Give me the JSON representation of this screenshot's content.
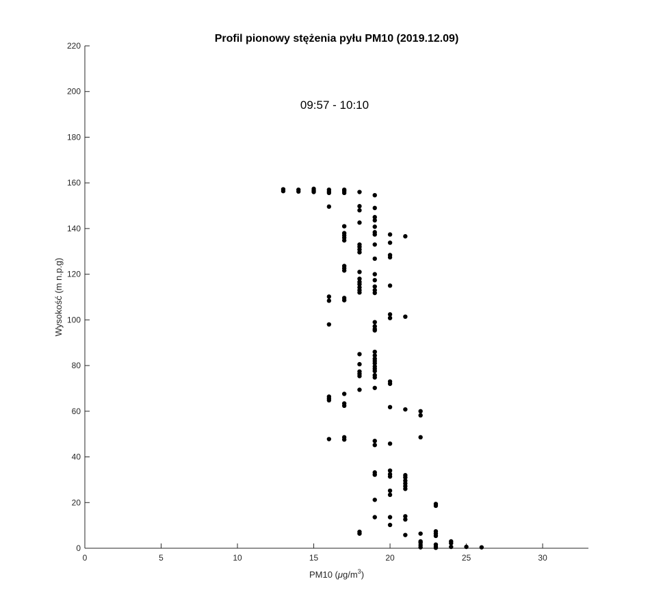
{
  "chart_data": {
    "type": "scatter",
    "title": "Profil pionowy stężenia pyłu PM10 (2019.12.09)",
    "xlabel_prefix": "PM10 (",
    "xlabel_mu": "μ",
    "xlabel_unit": "g/m",
    "xlabel_exp": "3",
    "xlabel_suffix": ")",
    "ylabel": "Wysokość (m n.p.g)",
    "annotation": "09:57 - 10:10",
    "xlim": [
      0,
      33
    ],
    "ylim": [
      0,
      220
    ],
    "x_ticks": [
      0,
      5,
      10,
      15,
      20,
      25,
      30
    ],
    "y_ticks": [
      0,
      20,
      40,
      60,
      80,
      100,
      120,
      140,
      160,
      180,
      200,
      220
    ],
    "x_tick_labels": [
      "0",
      "5",
      "10",
      "15",
      "20",
      "25",
      "30"
    ],
    "y_tick_labels": [
      "0",
      "20",
      "40",
      "60",
      "80",
      "100",
      "120",
      "140",
      "160",
      "180",
      "200",
      "220"
    ],
    "grid": false,
    "marker_color": "#000000",
    "points": [
      [
        13,
        157.2
      ],
      [
        13,
        156.4
      ],
      [
        14,
        157
      ],
      [
        14,
        156.2
      ],
      [
        15,
        157.4
      ],
      [
        15,
        156.6
      ],
      [
        15,
        156
      ],
      [
        16,
        157
      ],
      [
        16,
        156.2
      ],
      [
        16,
        155.6
      ],
      [
        16,
        149.6
      ],
      [
        17,
        157
      ],
      [
        17,
        156.4
      ],
      [
        17,
        155.6
      ],
      [
        18,
        156
      ],
      [
        18,
        149.8
      ],
      [
        18,
        148
      ],
      [
        18,
        142.6
      ],
      [
        18,
        133
      ],
      [
        18,
        132
      ],
      [
        18,
        130.8
      ],
      [
        18,
        129.6
      ],
      [
        18,
        121
      ],
      [
        18,
        118
      ],
      [
        18,
        116.6
      ],
      [
        18,
        115.6
      ],
      [
        18,
        114.2
      ],
      [
        18,
        113
      ],
      [
        18,
        112
      ],
      [
        18,
        85
      ],
      [
        18,
        80.6
      ],
      [
        18,
        77.4
      ],
      [
        18,
        76.4
      ],
      [
        18,
        75.4
      ],
      [
        18,
        69.4
      ],
      [
        18,
        7.2
      ],
      [
        18,
        6.4
      ],
      [
        17,
        141
      ],
      [
        17,
        138
      ],
      [
        17,
        137
      ],
      [
        17,
        136
      ],
      [
        17,
        134.8
      ],
      [
        17,
        123.6
      ],
      [
        17,
        122.6
      ],
      [
        17,
        121.6
      ],
      [
        17,
        109.6
      ],
      [
        17,
        108.6
      ],
      [
        17,
        67.6
      ],
      [
        17,
        63.4
      ],
      [
        17,
        62.4
      ],
      [
        17,
        48.6
      ],
      [
        17,
        47.6
      ],
      [
        16,
        110.2
      ],
      [
        16,
        108.4
      ],
      [
        16,
        98
      ],
      [
        16,
        66.4
      ],
      [
        16,
        65.6
      ],
      [
        16,
        64.8
      ],
      [
        16,
        47.8
      ],
      [
        19,
        154.6
      ],
      [
        19,
        149
      ],
      [
        19,
        145
      ],
      [
        19,
        143.6
      ],
      [
        19,
        140.8
      ],
      [
        19,
        138.4
      ],
      [
        19,
        137.4
      ],
      [
        19,
        133
      ],
      [
        19,
        126.8
      ],
      [
        19,
        120
      ],
      [
        19,
        117.4
      ],
      [
        19,
        114.6
      ],
      [
        19,
        113
      ],
      [
        19,
        111.8
      ],
      [
        19,
        99
      ],
      [
        19,
        97.2
      ],
      [
        19,
        96
      ],
      [
        19,
        95.4
      ],
      [
        19,
        86
      ],
      [
        19,
        84.4
      ],
      [
        19,
        83
      ],
      [
        19,
        82
      ],
      [
        19,
        81
      ],
      [
        19,
        79.6
      ],
      [
        19,
        78.6
      ],
      [
        19,
        77.6
      ],
      [
        19,
        75.8
      ],
      [
        19,
        74.8
      ],
      [
        19,
        70.2
      ],
      [
        19,
        47
      ],
      [
        19,
        45.2
      ],
      [
        19,
        33.2
      ],
      [
        19,
        32.2
      ],
      [
        19,
        21.2
      ],
      [
        19,
        13.6
      ],
      [
        20,
        137.4
      ],
      [
        20,
        133.8
      ],
      [
        20,
        128.4
      ],
      [
        20,
        127.4
      ],
      [
        20,
        115
      ],
      [
        20,
        102.4
      ],
      [
        20,
        100.8
      ],
      [
        20,
        73
      ],
      [
        20,
        72
      ],
      [
        20,
        61.8
      ],
      [
        20,
        45.8
      ],
      [
        20,
        34
      ],
      [
        20,
        32.4
      ],
      [
        20,
        31.4
      ],
      [
        20,
        25.2
      ],
      [
        20,
        23.4
      ],
      [
        20,
        13.6
      ],
      [
        20,
        10.2
      ],
      [
        21,
        136.6
      ],
      [
        21,
        101.4
      ],
      [
        21,
        60.8
      ],
      [
        21,
        32
      ],
      [
        21,
        31
      ],
      [
        21,
        29.6
      ],
      [
        21,
        28.4
      ],
      [
        21,
        27.2
      ],
      [
        21,
        26
      ],
      [
        21,
        14
      ],
      [
        21,
        12.6
      ],
      [
        21,
        5.8
      ],
      [
        22,
        60
      ],
      [
        22,
        58.2
      ],
      [
        22,
        48.6
      ],
      [
        22,
        6.4
      ],
      [
        22,
        3
      ],
      [
        22,
        2.4
      ],
      [
        22,
        1.4
      ],
      [
        22,
        0.4
      ],
      [
        23,
        19.4
      ],
      [
        23,
        18.6
      ],
      [
        23,
        7.4
      ],
      [
        23,
        6.4
      ],
      [
        23,
        5.4
      ],
      [
        23,
        1.6
      ],
      [
        23,
        0.8
      ],
      [
        23,
        0.2
      ],
      [
        24,
        3
      ],
      [
        24,
        2.2
      ],
      [
        24,
        0.6
      ],
      [
        25,
        0.6
      ],
      [
        26,
        0.4
      ]
    ]
  }
}
